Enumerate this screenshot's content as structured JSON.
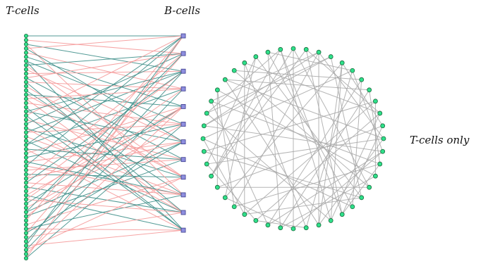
{
  "labels": {
    "t_cells": "T-cells",
    "b_cells": "B-cells",
    "t_cells_only": "T-cells only"
  },
  "colors": {
    "t_node_fill": "#2ee08a",
    "t_node_stroke": "#1d6a3e",
    "b_node_fill": "#8f8fe0",
    "b_node_stroke": "#3b3b8a",
    "edge_teal": "#3f8f8a",
    "edge_pink": "#f59a9a",
    "edge_gray": "#a8a8a8"
  },
  "bipartite": {
    "t_count": 54,
    "b_count": 12,
    "edges": [
      [
        0,
        0,
        "teal"
      ],
      [
        1,
        1,
        "pink"
      ],
      [
        2,
        2,
        "teal"
      ],
      [
        3,
        0,
        "pink"
      ],
      [
        4,
        3,
        "pink"
      ],
      [
        5,
        4,
        "teal"
      ],
      [
        6,
        5,
        "teal"
      ],
      [
        7,
        1,
        "teal"
      ],
      [
        8,
        6,
        "pink"
      ],
      [
        9,
        2,
        "pink"
      ],
      [
        10,
        7,
        "teal"
      ],
      [
        11,
        3,
        "pink"
      ],
      [
        12,
        8,
        "pink"
      ],
      [
        13,
        9,
        "teal"
      ],
      [
        14,
        4,
        "teal"
      ],
      [
        15,
        10,
        "pink"
      ],
      [
        16,
        5,
        "pink"
      ],
      [
        17,
        11,
        "teal"
      ],
      [
        18,
        6,
        "teal"
      ],
      [
        19,
        0,
        "pink"
      ],
      [
        20,
        7,
        "pink"
      ],
      [
        21,
        1,
        "teal"
      ],
      [
        22,
        8,
        "teal"
      ],
      [
        23,
        2,
        "teal"
      ],
      [
        24,
        9,
        "pink"
      ],
      [
        25,
        10,
        "teal"
      ],
      [
        26,
        3,
        "teal"
      ],
      [
        27,
        11,
        "pink"
      ],
      [
        28,
        4,
        "pink"
      ],
      [
        29,
        5,
        "teal"
      ],
      [
        30,
        6,
        "pink"
      ],
      [
        31,
        0,
        "teal"
      ],
      [
        32,
        7,
        "pink"
      ],
      [
        33,
        8,
        "teal"
      ],
      [
        34,
        1,
        "pink"
      ],
      [
        35,
        9,
        "pink"
      ],
      [
        36,
        10,
        "teal"
      ],
      [
        37,
        2,
        "pink"
      ],
      [
        38,
        11,
        "teal"
      ],
      [
        39,
        3,
        "pink"
      ],
      [
        40,
        4,
        "teal"
      ],
      [
        41,
        5,
        "pink"
      ],
      [
        42,
        6,
        "teal"
      ],
      [
        43,
        7,
        "teal"
      ],
      [
        44,
        0,
        "pink"
      ],
      [
        45,
        8,
        "pink"
      ],
      [
        46,
        9,
        "teal"
      ],
      [
        47,
        1,
        "pink"
      ],
      [
        48,
        10,
        "pink"
      ],
      [
        49,
        2,
        "teal"
      ],
      [
        50,
        11,
        "pink"
      ],
      [
        51,
        3,
        "teal"
      ],
      [
        52,
        4,
        "pink"
      ],
      [
        53,
        5,
        "teal"
      ],
      [
        2,
        9,
        "pink"
      ],
      [
        6,
        11,
        "teal"
      ],
      [
        10,
        1,
        "pink"
      ],
      [
        14,
        8,
        "pink"
      ],
      [
        18,
        2,
        "teal"
      ],
      [
        22,
        10,
        "pink"
      ],
      [
        26,
        0,
        "teal"
      ],
      [
        30,
        9,
        "teal"
      ],
      [
        34,
        6,
        "pink"
      ],
      [
        38,
        4,
        "pink"
      ],
      [
        42,
        1,
        "teal"
      ],
      [
        46,
        11,
        "pink"
      ],
      [
        50,
        0,
        "teal"
      ],
      [
        3,
        6,
        "teal"
      ],
      [
        7,
        8,
        "pink"
      ],
      [
        11,
        10,
        "teal"
      ],
      [
        15,
        3,
        "pink"
      ],
      [
        19,
        11,
        "teal"
      ],
      [
        23,
        5,
        "pink"
      ],
      [
        27,
        7,
        "teal"
      ],
      [
        31,
        9,
        "pink"
      ],
      [
        35,
        2,
        "teal"
      ],
      [
        39,
        10,
        "pink"
      ],
      [
        43,
        4,
        "pink"
      ],
      [
        47,
        6,
        "teal"
      ],
      [
        51,
        8,
        "pink"
      ],
      [
        53,
        0,
        "pink"
      ]
    ]
  },
  "circle_graph": {
    "node_count": 44,
    "edges": [
      [
        0,
        15
      ],
      [
        0,
        22
      ],
      [
        1,
        18
      ],
      [
        1,
        30
      ],
      [
        2,
        20
      ],
      [
        2,
        27
      ],
      [
        3,
        16
      ],
      [
        3,
        35
      ],
      [
        4,
        19
      ],
      [
        4,
        28
      ],
      [
        5,
        21
      ],
      [
        5,
        33
      ],
      [
        6,
        17
      ],
      [
        6,
        24
      ],
      [
        7,
        23
      ],
      [
        7,
        38
      ],
      [
        8,
        26
      ],
      [
        8,
        14
      ],
      [
        9,
        25
      ],
      [
        9,
        40
      ],
      [
        10,
        29
      ],
      [
        10,
        18
      ],
      [
        11,
        31
      ],
      [
        11,
        20
      ],
      [
        12,
        34
      ],
      [
        12,
        22
      ],
      [
        13,
        36
      ],
      [
        13,
        27
      ],
      [
        14,
        37
      ],
      [
        15,
        39
      ],
      [
        16,
        41
      ],
      [
        17,
        42
      ],
      [
        18,
        43
      ],
      [
        19,
        35
      ],
      [
        20,
        38
      ],
      [
        21,
        40
      ],
      [
        23,
        42
      ],
      [
        24,
        36
      ],
      [
        25,
        31
      ],
      [
        26,
        33
      ],
      [
        28,
        41
      ],
      [
        29,
        37
      ],
      [
        30,
        43
      ],
      [
        32,
        16
      ],
      [
        32,
        8
      ],
      [
        34,
        3
      ],
      [
        39,
        6
      ],
      [
        0,
        30
      ],
      [
        2,
        34
      ],
      [
        4,
        10
      ],
      [
        5,
        12
      ],
      [
        7,
        13
      ],
      [
        9,
        1
      ],
      [
        11,
        2
      ],
      [
        14,
        23
      ],
      [
        15,
        29
      ],
      [
        17,
        33
      ],
      [
        19,
        9
      ],
      [
        21,
        25
      ],
      [
        22,
        28
      ],
      [
        24,
        12
      ],
      [
        26,
        40
      ],
      [
        27,
        37
      ],
      [
        31,
        41
      ],
      [
        35,
        43
      ],
      [
        36,
        2
      ],
      [
        38,
        11
      ],
      [
        42,
        5
      ],
      [
        43,
        19
      ],
      [
        20,
        4
      ],
      [
        18,
        13
      ],
      [
        16,
        26
      ]
    ]
  }
}
